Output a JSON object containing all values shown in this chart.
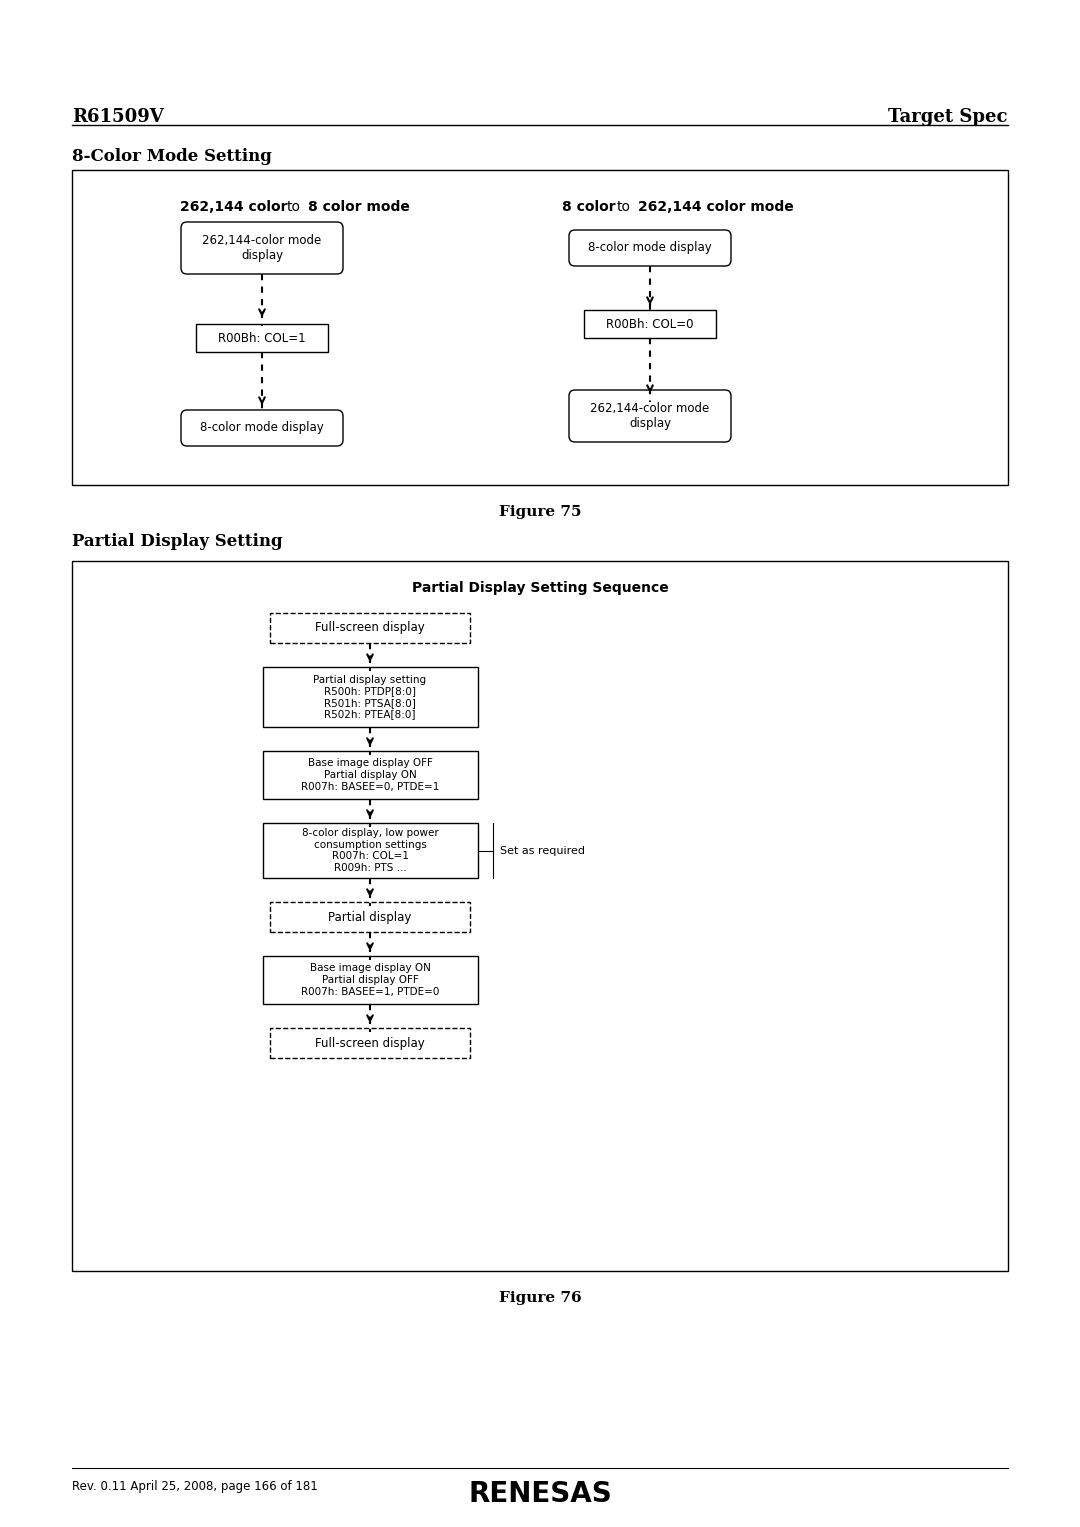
{
  "page_bg": "#ffffff",
  "header_left": "R61509V",
  "header_right": "Target Spec",
  "section1_title": "8-Color Mode Setting",
  "fig75_caption": "Figure 75",
  "fig76_caption": "Figure 76",
  "section2_title": "Partial Display Setting",
  "footer_text": "Rev. 0.11 April 25, 2008, page 166 of 181",
  "partial_title": "Partial Display Setting Sequence",
  "side_note": "Set as required"
}
